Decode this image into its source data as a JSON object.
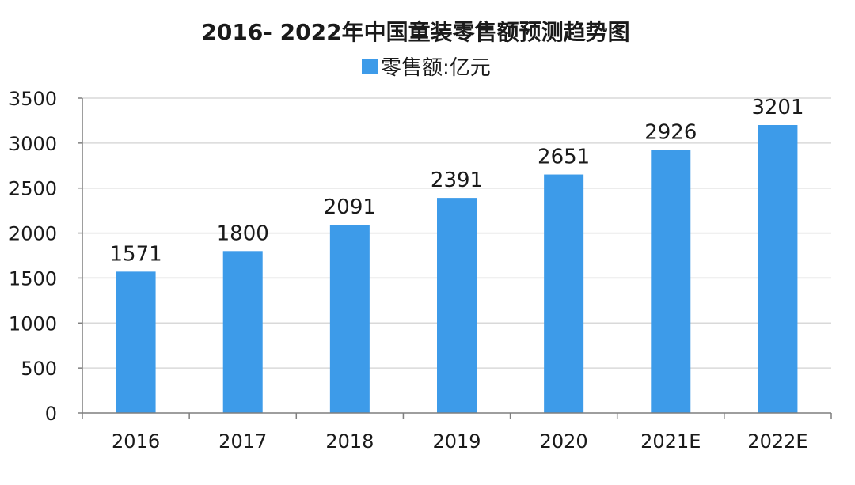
{
  "colors": {
    "bar": "#3d9be9",
    "grid": "#d9d9d9",
    "axis": "#7f7f7f"
  },
  "chart_data": {
    "type": "bar",
    "title": "2016- 2022年中国童装零售额预测趋势图",
    "series": [
      {
        "name": "零售额:亿元",
        "values": [
          1571,
          1800,
          2091,
          2391,
          2651,
          2926,
          3201
        ]
      }
    ],
    "categories": [
      "2016",
      "2017",
      "2018",
      "2019",
      "2020",
      "2021E",
      "2022E"
    ],
    "yticks": [
      "0",
      "500",
      "1000",
      "1500",
      "2000",
      "2500",
      "3000",
      "3500"
    ],
    "ylim": [
      0,
      3500
    ],
    "grid": true,
    "legend": "top-center"
  }
}
